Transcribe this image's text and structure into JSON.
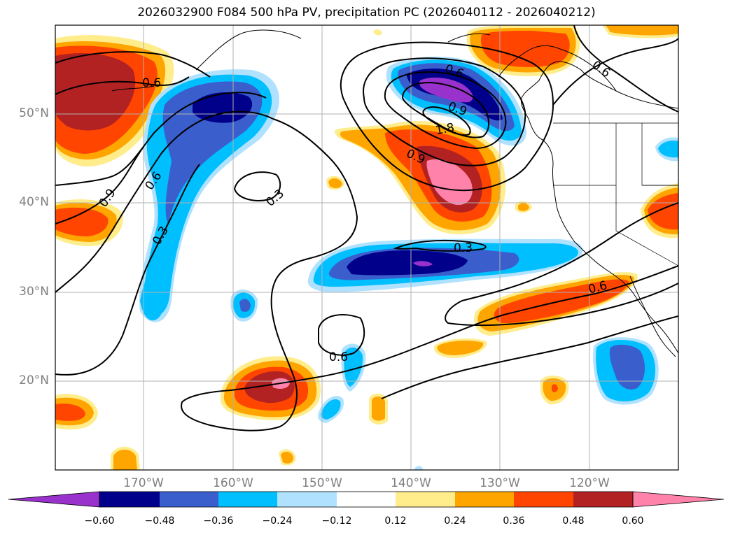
{
  "title": "2026032900 F084 500 hPa PV, precipitation PC (2026040112 - 2026040212)",
  "longitude_labels": [
    "170°W",
    "160°W",
    "150°W",
    "140°W",
    "130°W",
    "120°W"
  ],
  "latitude_labels": [
    "50°N",
    "40°N",
    "30°N",
    "20°N"
  ],
  "contour_labels": [
    "0.6",
    "0.9",
    "0.6",
    "1.8",
    "0.9",
    "0.6",
    "0.9",
    "0.3",
    "0.3",
    "0.3",
    "0.6",
    "0.6"
  ],
  "colorbar": {
    "ticks": [
      "−0.60",
      "−0.48",
      "−0.36",
      "−0.24",
      "−0.12",
      "0.12",
      "0.24",
      "0.36",
      "0.48",
      "0.60"
    ],
    "colors": [
      "#9932cc",
      "#00008b",
      "#3a5fcd",
      "#00bfff",
      "#b0e2ff",
      "#ffffff",
      "#ffec8b",
      "#ffa500",
      "#ff4500",
      "#b22222",
      "#ff82ab"
    ],
    "extend": "both"
  },
  "shading_colors": {
    "neg_060": "#9932cc",
    "neg_048": "#00008b",
    "neg_036": "#3a5fcd",
    "neg_024": "#00bfff",
    "neg_012": "#b0e2ff",
    "pos_012": "#ffec8b",
    "pos_024": "#ffa500",
    "pos_036": "#ff4500",
    "pos_048": "#b22222",
    "pos_060": "#ff82ab"
  },
  "map": {
    "projection": "PlateCarree",
    "lon_range": [
      -180,
      -110
    ],
    "lat_range": [
      10,
      60
    ],
    "gridlines": true
  }
}
